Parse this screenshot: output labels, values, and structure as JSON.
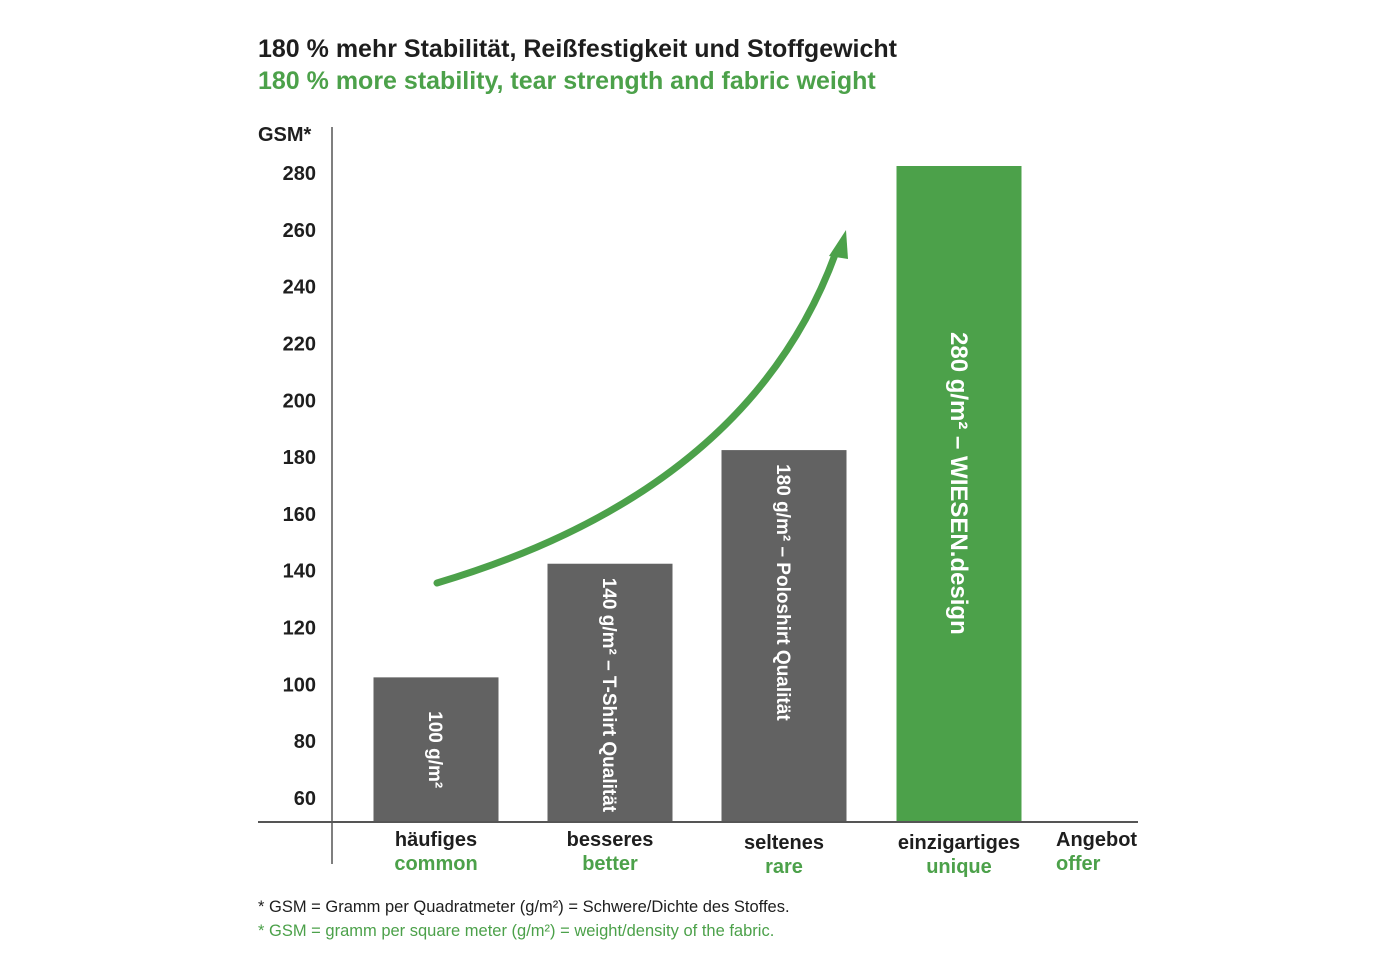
{
  "chart_data": {
    "type": "bar",
    "title": "180 % mehr Stabilität, Reißfestigkeit und Stoffgewicht",
    "subtitle": "180 % more stability, tear strength and fabric weight",
    "ylabel": "GSM*",
    "ylim": [
      50,
      290
    ],
    "yticks": [
      "60",
      "80",
      "100",
      "120",
      "140",
      "160",
      "180",
      "200",
      "220",
      "240",
      "260",
      "280"
    ],
    "categories": [
      {
        "de": "häufiges",
        "en": "common"
      },
      {
        "de": "besseres",
        "en": "better"
      },
      {
        "de": "seltenes",
        "en": "rare"
      },
      {
        "de": "einzigartiges",
        "en": "unique"
      }
    ],
    "values": [
      100,
      140,
      180,
      280
    ],
    "bar_labels": [
      "100 g/m²",
      "140 g/m² – T-Shirt Qualität",
      "180 g/m² – Poloshirt Qualität",
      "280 g/m² – WIESEN.design"
    ],
    "highlight": {
      "de": "Angebot",
      "en": "offer"
    },
    "colors": {
      "bar": "#626262",
      "highlight_bar": "#4ca14a",
      "accent": "#4ca14a",
      "text": "#1e1e1e",
      "axis": "#555555"
    },
    "trend_arrow": true,
    "footnotes": [
      "* GSM = Gramm per Quadratmeter (g/m²) = Schwere/Dichte des Stoffes.",
      "* GSM = gramm per square meter (g/m²) = weight/density of the fabric."
    ]
  }
}
